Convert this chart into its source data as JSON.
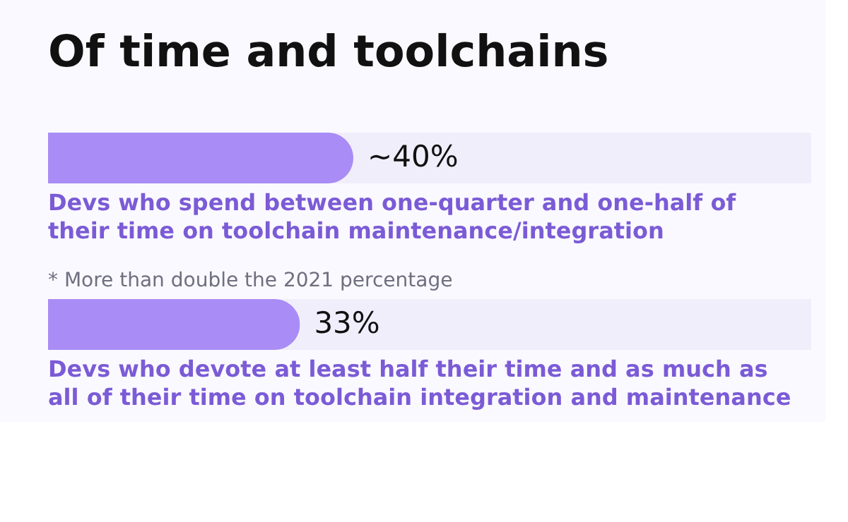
{
  "chart_data": {
    "type": "bar",
    "orientation": "horizontal",
    "title": "Of time and toolchains",
    "categories": [
      "Devs who spend between one-quarter and one-half of their time on toolchain maintenance/integration",
      "Devs who devote at least half their time and as much as all of their time on toolchain integration and maintenance"
    ],
    "values": [
      40,
      33
    ],
    "color": "#a98cf5",
    "value_labels": [
      "~40%",
      "33%"
    ],
    "xlim": [
      0,
      100
    ],
    "tick_labels": false,
    "annotations": [
      "* More than double the 2021 percentage"
    ]
  }
}
